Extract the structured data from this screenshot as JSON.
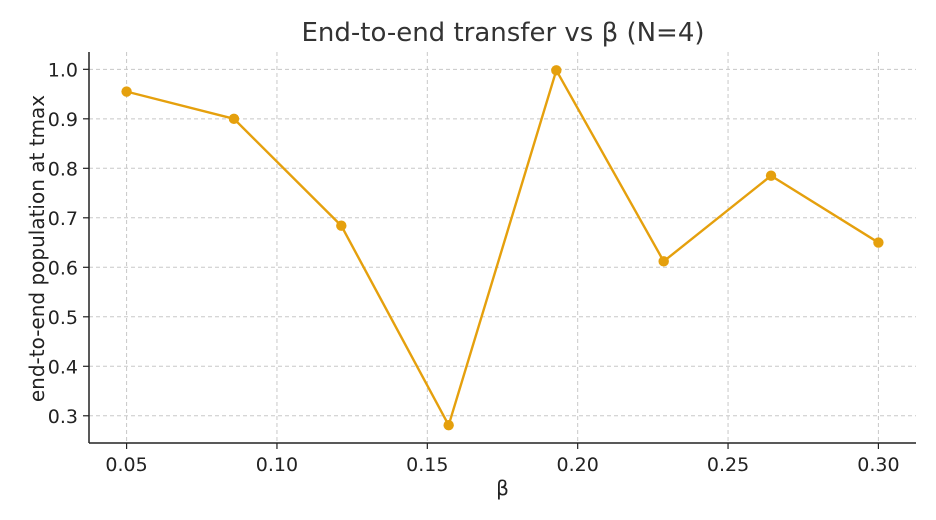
{
  "chart_data": {
    "type": "line",
    "title": "End-to-end transfer vs β (N=4)",
    "xlabel": "β",
    "ylabel": "end-to-end population at tmax",
    "xlim": [
      0.0375,
      0.3125
    ],
    "ylim": [
      0.245,
      1.035
    ],
    "xticks": [
      0.05,
      0.1,
      0.15,
      0.2,
      0.25,
      0.3
    ],
    "xtick_labels": [
      "0.05",
      "0.10",
      "0.15",
      "0.20",
      "0.25",
      "0.30"
    ],
    "yticks": [
      0.3,
      0.4,
      0.5,
      0.6,
      0.7,
      0.8,
      0.9,
      1.0
    ],
    "ytick_labels": [
      "0.3",
      "0.4",
      "0.5",
      "0.6",
      "0.7",
      "0.8",
      "0.9",
      "1.0"
    ],
    "grid": true,
    "legend": "none",
    "series": [
      {
        "color": "#e5a00d",
        "marker": "circle",
        "x": [
          0.05,
          0.0857,
          0.1214,
          0.1571,
          0.1929,
          0.2286,
          0.2643,
          0.3
        ],
        "y": [
          0.955,
          0.9,
          0.684,
          0.281,
          0.998,
          0.612,
          0.785,
          0.65
        ]
      }
    ]
  }
}
